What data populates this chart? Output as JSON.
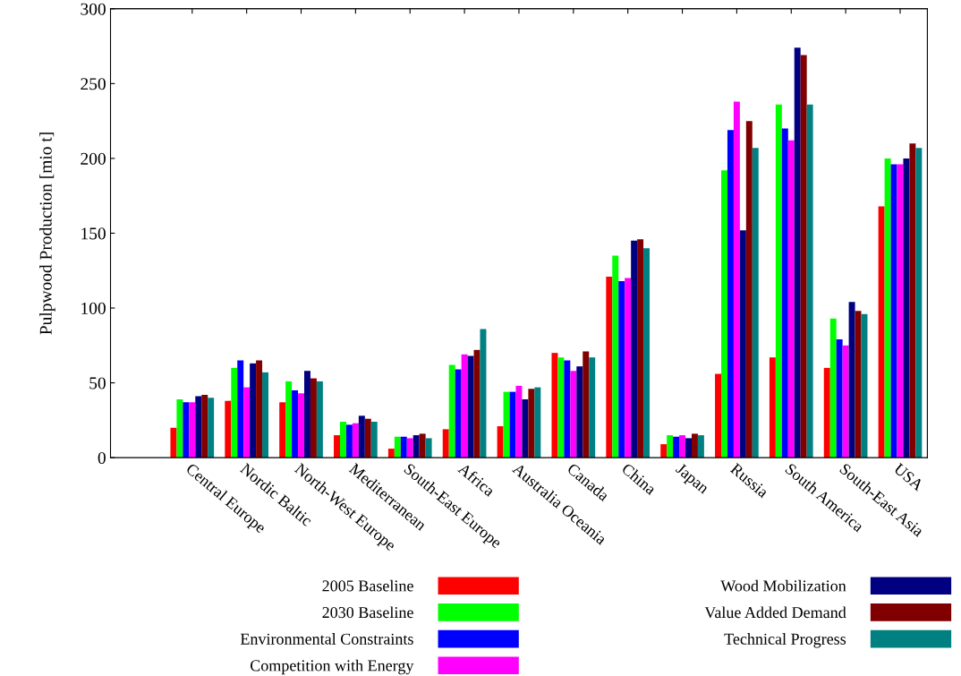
{
  "chart_data": {
    "type": "bar",
    "ylabel": "Pulpwood Production [mio t]",
    "categories": [
      "Central Europe",
      "Nordic Baltic",
      "North-West Europe",
      "Mediterranean",
      "South-East Europe",
      "Africa",
      "Australia Oceania",
      "Canada",
      "China",
      "Japan",
      "Russia",
      "South America",
      "South-East Asia",
      "USA"
    ],
    "series": [
      {
        "name": "2005 Baseline",
        "color": "#ff0000",
        "values": [
          20,
          38,
          37,
          15,
          6,
          19,
          21,
          70,
          121,
          9,
          56,
          67,
          60,
          168
        ]
      },
      {
        "name": "2030 Baseline",
        "color": "#00ff00",
        "values": [
          39,
          60,
          51,
          24,
          14,
          62,
          44,
          67,
          135,
          15,
          192,
          236,
          93,
          200
        ]
      },
      {
        "name": "Environmental Constraints",
        "color": "#0000ff",
        "values": [
          37,
          65,
          45,
          22,
          14,
          59,
          44,
          65,
          118,
          14,
          219,
          220,
          79,
          196
        ]
      },
      {
        "name": "Competition with Energy",
        "color": "#ff00ff",
        "values": [
          37,
          47,
          43,
          23,
          13,
          69,
          48,
          58,
          120,
          15,
          238,
          212,
          75,
          196
        ]
      },
      {
        "name": "Wood Mobilization",
        "color": "#000080",
        "values": [
          41,
          63,
          58,
          28,
          15,
          68,
          39,
          61,
          145,
          13,
          152,
          274,
          104,
          200
        ]
      },
      {
        "name": "Value Added Demand",
        "color": "#800000",
        "values": [
          42,
          65,
          53,
          26,
          16,
          72,
          46,
          71,
          146,
          16,
          225,
          269,
          98,
          210
        ]
      },
      {
        "name": "Technical Progress",
        "color": "#008080",
        "values": [
          40,
          57,
          51,
          24,
          13,
          86,
          47,
          67,
          140,
          15,
          207,
          236,
          96,
          207
        ]
      }
    ],
    "ylim": [
      0,
      300
    ],
    "yticks": [
      0,
      50,
      100,
      150,
      200,
      250,
      300
    ],
    "grid": false,
    "legend": "bottom"
  }
}
